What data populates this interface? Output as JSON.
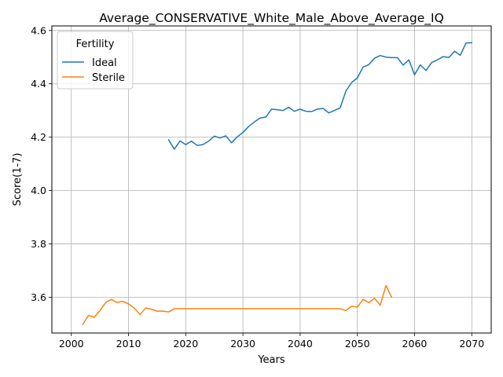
{
  "chart_data": {
    "type": "line",
    "title": "Average_CONSERVATIVE_White_Male_Above_Average_IQ",
    "xlabel": "Years",
    "ylabel": "Score(1-7)",
    "xlim": [
      1996.6,
      2073.4
    ],
    "ylim": [
      3.466,
      4.617
    ],
    "xticks": [
      2000,
      2010,
      2020,
      2030,
      2040,
      2050,
      2060,
      2070
    ],
    "yticks": [
      3.6,
      3.8,
      4.0,
      4.2,
      4.4,
      4.6
    ],
    "xtick_labels": [
      "2000",
      "2010",
      "2020",
      "2030",
      "2040",
      "2050",
      "2060",
      "2070"
    ],
    "ytick_labels": [
      "3.6",
      "3.8",
      "4.0",
      "4.2",
      "4.4",
      "4.6"
    ],
    "grid": true,
    "legend": {
      "title": "Fertility",
      "placement": "top-left"
    },
    "series": [
      {
        "name": "Ideal",
        "color": "#1f77b4",
        "x": [
          2017,
          2018,
          2019,
          2020,
          2021,
          2022,
          2023,
          2024,
          2025,
          2026,
          2027,
          2028,
          2029,
          2030,
          2031,
          2032,
          2033,
          2034,
          2035,
          2036,
          2037,
          2038,
          2039,
          2040,
          2041,
          2042,
          2043,
          2044,
          2045,
          2046,
          2047,
          2048,
          2049,
          2050,
          2051,
          2052,
          2053,
          2054,
          2055,
          2056,
          2057,
          2058,
          2059,
          2060,
          2061,
          2062,
          2063,
          2064,
          2065,
          2066,
          2067,
          2068,
          2069,
          2070
        ],
        "y": [
          4.19,
          4.155,
          4.186,
          4.172,
          4.185,
          4.169,
          4.172,
          4.185,
          4.204,
          4.197,
          4.205,
          4.179,
          4.201,
          4.218,
          4.24,
          4.257,
          4.272,
          4.275,
          4.305,
          4.303,
          4.3,
          4.312,
          4.297,
          4.305,
          4.297,
          4.296,
          4.305,
          4.308,
          4.291,
          4.3,
          4.31,
          4.373,
          4.405,
          4.422,
          4.463,
          4.472,
          4.496,
          4.506,
          4.5,
          4.498,
          4.498,
          4.47,
          4.49,
          4.434,
          4.471,
          4.45,
          4.48,
          4.49,
          4.502,
          4.499,
          4.522,
          4.507,
          4.553,
          4.554
        ]
      },
      {
        "name": "Sterile",
        "color": "#ff7f0e",
        "x": [
          2002,
          2003,
          2004,
          2005,
          2006,
          2007,
          2008,
          2009,
          2010,
          2011,
          2012,
          2013,
          2014,
          2015,
          2016,
          2017,
          2018,
          2019,
          2020,
          2021,
          2022,
          2023,
          2024,
          2025,
          2026,
          2027,
          2028,
          2029,
          2030,
          2031,
          2032,
          2033,
          2034,
          2035,
          2036,
          2037,
          2038,
          2039,
          2040,
          2041,
          2042,
          2043,
          2044,
          2045,
          2046,
          2047,
          2048,
          2049,
          2050,
          2051,
          2052,
          2053,
          2054,
          2055,
          2056
        ],
        "y": [
          3.498,
          3.532,
          3.525,
          3.55,
          3.58,
          3.592,
          3.58,
          3.585,
          3.575,
          3.56,
          3.535,
          3.56,
          3.555,
          3.548,
          3.548,
          3.545,
          3.557,
          3.557,
          3.557,
          3.557,
          3.557,
          3.557,
          3.557,
          3.557,
          3.557,
          3.557,
          3.557,
          3.557,
          3.557,
          3.557,
          3.557,
          3.557,
          3.557,
          3.557,
          3.557,
          3.557,
          3.557,
          3.557,
          3.557,
          3.557,
          3.557,
          3.557,
          3.557,
          3.557,
          3.557,
          3.557,
          3.55,
          3.567,
          3.563,
          3.592,
          3.58,
          3.596,
          3.57,
          3.644,
          3.6
        ]
      }
    ]
  }
}
